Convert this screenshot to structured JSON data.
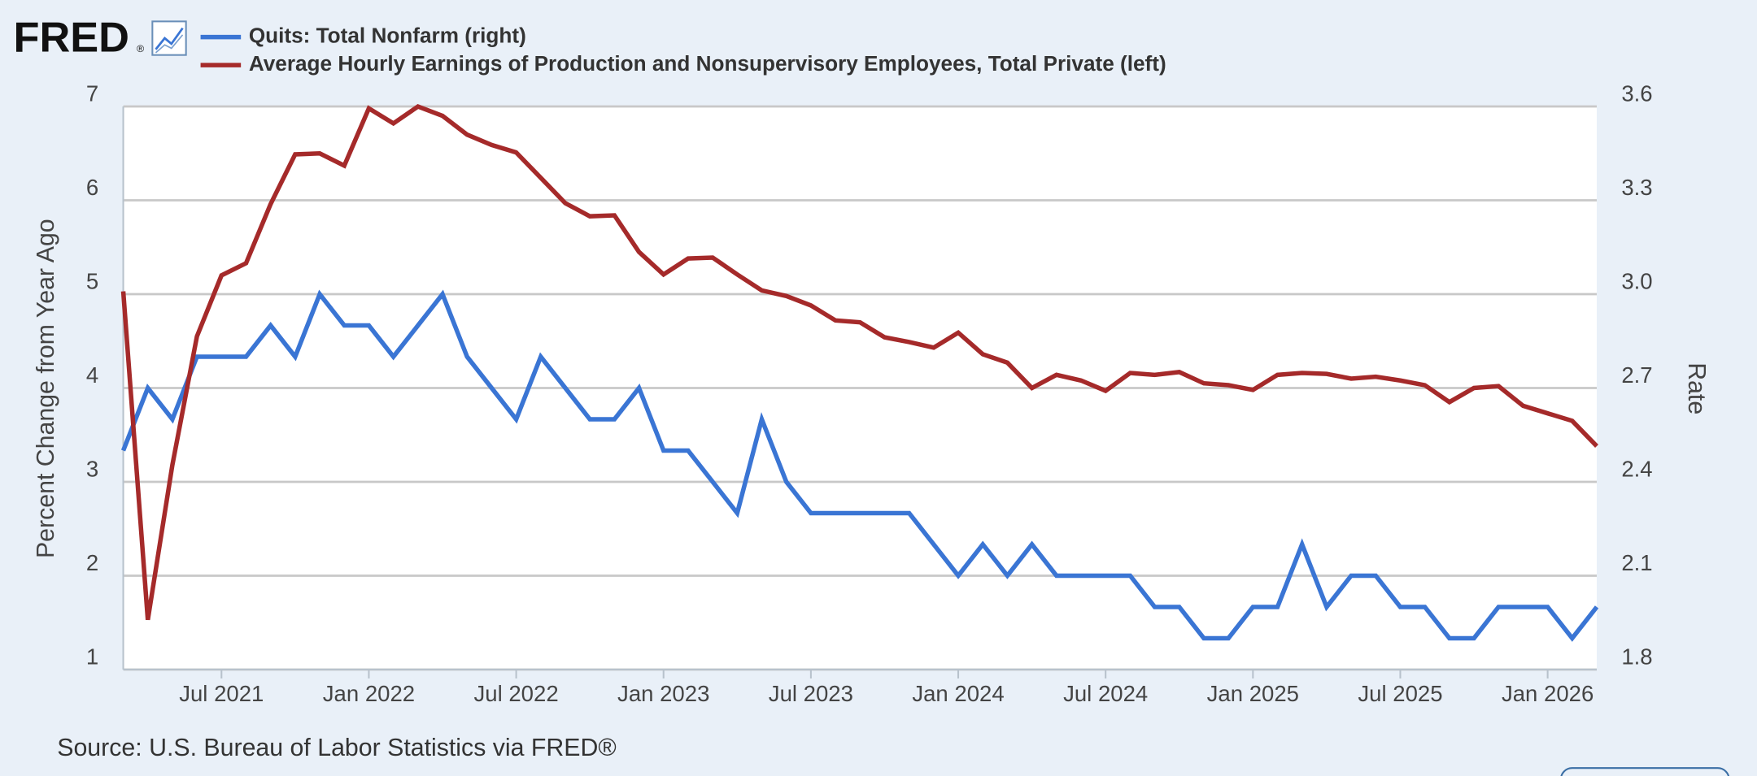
{
  "logo": {
    "text": "FRED",
    "mark": "®"
  },
  "chart_data": {
    "type": "line",
    "source": "Source: U.S. Bureau of Labor Statistics via FRED®",
    "ylabel": "Percent Change from Year Ago",
    "y2label": "Rate",
    "x": [
      "2021-03",
      "2021-04",
      "2021-05",
      "2021-06",
      "2021-07",
      "2021-08",
      "2021-09",
      "2021-10",
      "2021-11",
      "2021-12",
      "2022-01",
      "2022-02",
      "2022-03",
      "2022-04",
      "2022-05",
      "2022-06",
      "2022-07",
      "2022-08",
      "2022-09",
      "2022-10",
      "2022-11",
      "2022-12",
      "2023-01",
      "2023-02",
      "2023-03",
      "2023-04",
      "2023-05",
      "2023-06",
      "2023-07",
      "2023-08",
      "2023-09",
      "2023-10",
      "2023-11",
      "2023-12",
      "2024-01",
      "2024-02",
      "2024-03",
      "2024-04",
      "2024-05",
      "2024-06",
      "2024-07",
      "2024-08",
      "2024-09",
      "2024-10",
      "2024-11",
      "2024-12",
      "2025-01",
      "2025-02",
      "2025-03",
      "2025-04",
      "2025-05",
      "2025-06",
      "2025-07",
      "2025-08",
      "2025-09",
      "2025-10",
      "2025-11",
      "2025-12",
      "2026-01",
      "2026-02",
      "2026-03"
    ],
    "xlim": [
      "2021-03",
      "2026-03"
    ],
    "xticks": [
      {
        "value": "2021-07",
        "label": "Jul 2021"
      },
      {
        "value": "2022-01",
        "label": "Jan 2022"
      },
      {
        "value": "2022-07",
        "label": "Jul 2022"
      },
      {
        "value": "2023-01",
        "label": "Jan 2023"
      },
      {
        "value": "2023-07",
        "label": "Jul 2023"
      },
      {
        "value": "2024-01",
        "label": "Jan 2024"
      },
      {
        "value": "2024-07",
        "label": "Jul 2024"
      },
      {
        "value": "2025-01",
        "label": "Jan 2025"
      },
      {
        "value": "2025-07",
        "label": "Jul 2025"
      },
      {
        "value": "2026-01",
        "label": "Jan 2026"
      }
    ],
    "ylim": [
      1,
      7
    ],
    "yticks": [
      1,
      2,
      3,
      4,
      5,
      6,
      7
    ],
    "y2lim": [
      1.8,
      3.6
    ],
    "y2ticks": [
      1.8,
      2.1,
      2.4,
      2.7,
      {
        "value": 3,
        "label": "3.0"
      },
      3.3,
      3.6
    ],
    "grid": true,
    "series": [
      {
        "name": "Quits: Total Nonfarm (right)",
        "color": "#3a75d4",
        "axis": "y2",
        "values": [
          2.5,
          2.7,
          2.6,
          2.8,
          2.8,
          2.8,
          2.9,
          2.8,
          3.0,
          2.9,
          2.9,
          2.8,
          2.9,
          3.0,
          2.8,
          2.7,
          2.6,
          2.8,
          2.7,
          2.6,
          2.6,
          2.7,
          2.5,
          2.5,
          2.4,
          2.3,
          2.6,
          2.4,
          2.3,
          2.3,
          2.3,
          2.3,
          2.3,
          2.2,
          2.1,
          2.2,
          2.1,
          2.2,
          2.1,
          2.1,
          2.1,
          2.1,
          2.0,
          2.0,
          1.9,
          1.9,
          2.0,
          2.0,
          2.2,
          2.0,
          2.1,
          2.1,
          2.0,
          2.0,
          1.9,
          1.9,
          2.0,
          2.0,
          2.0,
          1.9,
          2.0
        ]
      },
      {
        "name": "Average Hourly Earnings of Production and Nonsupervisory Employees, Total Private (left)",
        "color": "#a52a2a",
        "axis": "y",
        "values": [
          5.03,
          1.53,
          3.18,
          4.55,
          5.2,
          5.33,
          5.96,
          6.49,
          6.5,
          6.37,
          6.98,
          6.82,
          7.0,
          6.9,
          6.7,
          6.59,
          6.51,
          6.24,
          5.97,
          5.83,
          5.84,
          5.45,
          5.21,
          5.38,
          5.39,
          5.21,
          5.04,
          4.98,
          4.88,
          4.72,
          4.7,
          4.54,
          4.49,
          4.43,
          4.59,
          4.36,
          4.27,
          4.0,
          4.14,
          4.08,
          3.97,
          4.16,
          4.14,
          4.17,
          4.05,
          4.03,
          3.98,
          4.14,
          4.16,
          4.15,
          4.1,
          4.12,
          4.08,
          4.03,
          3.85,
          4.0,
          4.02,
          3.81,
          3.73,
          3.65,
          3.38
        ]
      }
    ]
  }
}
